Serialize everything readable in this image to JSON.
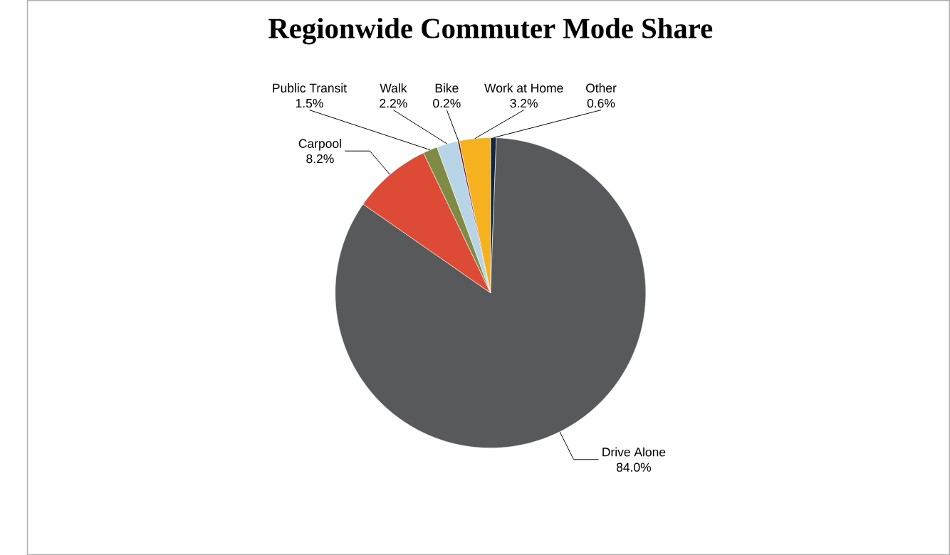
{
  "chart_data": {
    "type": "pie",
    "title": "Regionwide Commuter Mode Share",
    "categories": [
      "Other",
      "Drive Alone",
      "Carpool",
      "Public Transit",
      "Walk",
      "Bike",
      "Work at Home"
    ],
    "values": [
      0.6,
      84.0,
      8.2,
      1.5,
      2.2,
      0.2,
      3.2
    ],
    "value_labels": [
      "0.6%",
      "84.0%",
      "8.2%",
      "1.5%",
      "2.2%",
      "0.2%",
      "3.2%"
    ],
    "colors": [
      "#14263f",
      "#58595b",
      "#dd4a35",
      "#7f8a45",
      "#b7d5e6",
      "#7a1f1f",
      "#f6b11e"
    ]
  }
}
